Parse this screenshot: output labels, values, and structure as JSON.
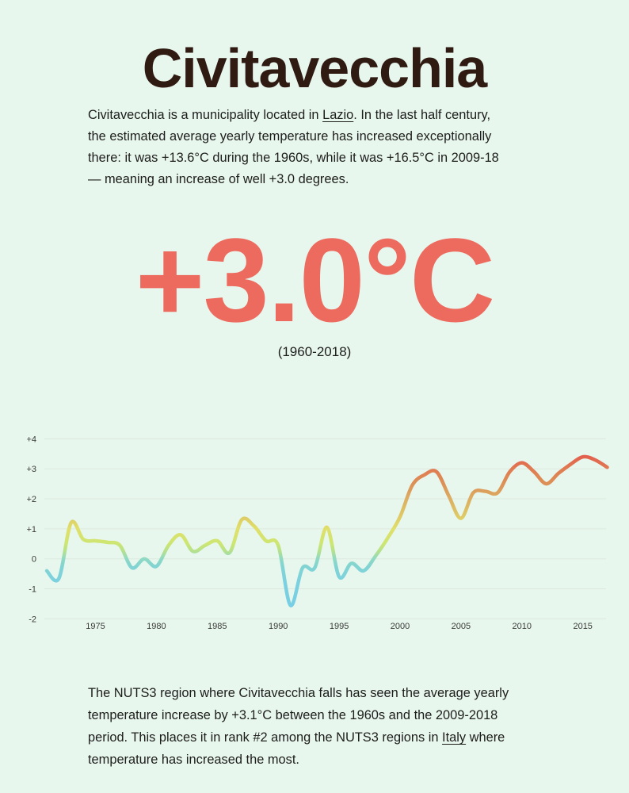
{
  "theme": {
    "background": "#e8f7ee",
    "title_color": "#2f1b12",
    "text_color": "#1d1d1b",
    "accent_color": "#ec6b5e",
    "grid_color": "#dce8de",
    "tick_color": "#3a3a38"
  },
  "header": {
    "title": "Civitavecchia"
  },
  "intro": {
    "lines": [
      [
        {
          "text": "Civitavecchia is a municipality located in "
        },
        {
          "text": "Lazio",
          "link": true,
          "name": "lazio-link"
        },
        {
          "text": ". In the last half century,"
        }
      ],
      [
        {
          "text": "the estimated average yearly temperature has increased exceptionally"
        }
      ],
      [
        {
          "text": "there: it was +13.6°C during the 1960s, while it was +16.5°C in 2009-18"
        }
      ],
      [
        {
          "text": "— meaning an increase of well +3.0 degrees."
        }
      ]
    ]
  },
  "highlight": {
    "value": "+3.0°C",
    "period": "(1960-2018)",
    "color": "#ec6b5e"
  },
  "chart_data": {
    "type": "line",
    "title": "",
    "xlabel": "",
    "ylabel": "",
    "grid": true,
    "legend_position": "none",
    "xlim": [
      1971,
      2017
    ],
    "ylim": [
      -2,
      4
    ],
    "x": [
      1971,
      1972,
      1973,
      1974,
      1975,
      1976,
      1977,
      1978,
      1979,
      1980,
      1981,
      1982,
      1983,
      1984,
      1985,
      1986,
      1987,
      1988,
      1989,
      1990,
      1991,
      1992,
      1993,
      1994,
      1995,
      1996,
      1997,
      1998,
      1999,
      2000,
      2001,
      2002,
      2003,
      2004,
      2005,
      2006,
      2007,
      2008,
      2009,
      2010,
      2011,
      2012,
      2013,
      2014,
      2015,
      2016,
      2017
    ],
    "y": [
      -0.4,
      -0.65,
      1.2,
      0.65,
      0.6,
      0.55,
      0.45,
      -0.3,
      0.0,
      -0.25,
      0.45,
      0.8,
      0.25,
      0.45,
      0.6,
      0.2,
      1.3,
      1.1,
      0.6,
      0.45,
      -1.55,
      -0.3,
      -0.3,
      1.05,
      -0.6,
      -0.15,
      -0.4,
      0.1,
      0.7,
      1.4,
      2.45,
      2.8,
      2.9,
      2.1,
      1.35,
      2.2,
      2.25,
      2.2,
      2.9,
      3.2,
      2.9,
      2.5,
      2.85,
      3.15,
      3.4,
      3.3,
      3.05
    ],
    "yticks": [
      {
        "value": 4,
        "label": "+4"
      },
      {
        "value": 3,
        "label": "+3"
      },
      {
        "value": 2,
        "label": "+2"
      },
      {
        "value": 1,
        "label": "+1"
      },
      {
        "value": 0,
        "label": "0"
      },
      {
        "value": -1,
        "label": "-1"
      },
      {
        "value": -2,
        "label": "-2"
      }
    ],
    "xticks": [
      {
        "value": 1975,
        "label": "1975"
      },
      {
        "value": 1980,
        "label": "1980"
      },
      {
        "value": 1985,
        "label": "1985"
      },
      {
        "value": 1990,
        "label": "1990"
      },
      {
        "value": 1995,
        "label": "1995"
      },
      {
        "value": 2000,
        "label": "2000"
      },
      {
        "value": 2005,
        "label": "2005"
      },
      {
        "value": 2010,
        "label": "2010"
      },
      {
        "value": 2015,
        "label": "2015"
      }
    ],
    "line_gradient": [
      {
        "offset": 0.0,
        "color": "#e24a45"
      },
      {
        "offset": 0.083,
        "color": "#e35b4d"
      },
      {
        "offset": 0.167,
        "color": "#e07b52"
      },
      {
        "offset": 0.25,
        "color": "#dc9156"
      },
      {
        "offset": 0.333,
        "color": "#dcae63"
      },
      {
        "offset": 0.417,
        "color": "#ddc665"
      },
      {
        "offset": 0.5,
        "color": "#e0df69"
      },
      {
        "offset": 0.583,
        "color": "#cde672"
      },
      {
        "offset": 0.625,
        "color": "#b4e18e"
      },
      {
        "offset": 0.667,
        "color": "#8fd9c4"
      },
      {
        "offset": 0.708,
        "color": "#82d4d2"
      },
      {
        "offset": 0.792,
        "color": "#7cd1df"
      },
      {
        "offset": 1.0,
        "color": "#75cde6"
      }
    ]
  },
  "outro": {
    "lines": [
      [
        {
          "text": "The NUTS3 region where Civitavecchia falls has seen the average yearly"
        }
      ],
      [
        {
          "text": "temperature increase by +3.1°C between the 1960s and the 2009-2018"
        }
      ],
      [
        {
          "text": "period. This places it in rank #2 among the NUTS3 regions in "
        },
        {
          "text": "Italy",
          "link": true,
          "name": "italy-link"
        },
        {
          "text": " where"
        }
      ],
      [
        {
          "text": "temperature has increased the most."
        }
      ]
    ]
  }
}
